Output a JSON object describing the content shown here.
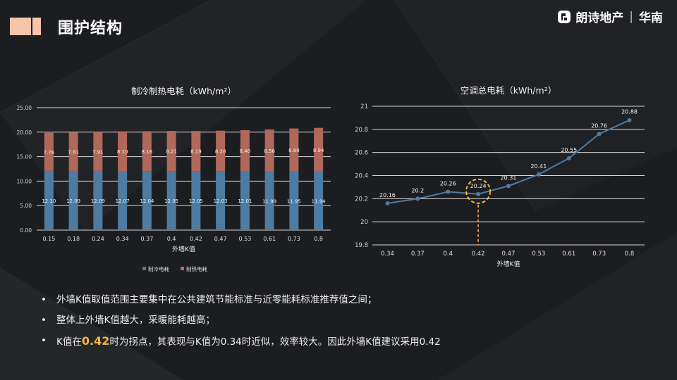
{
  "slide": {
    "title": "围护结构",
    "brand": "朗诗地产",
    "region": "华南",
    "accent_colors": [
      "#f5c4a9",
      "#f5c4a9"
    ]
  },
  "chart_data": [
    {
      "type": "bar",
      "stacked": true,
      "title": "制冷制热电耗（kWh/m²）",
      "xlabel": "外墙K值",
      "ylabel": "",
      "categories": [
        "0.15",
        "0.18",
        "0.24",
        "0.34",
        "0.37",
        "0.4",
        "0.42",
        "0.47",
        "0.53",
        "0.61",
        "0.73",
        "0.8"
      ],
      "series": [
        {
          "name": "制冷电耗",
          "color": "#4e7ba2",
          "values": [
            12.1,
            12.09,
            12.09,
            12.07,
            12.04,
            12.05,
            12.05,
            12.03,
            12.01,
            11.99,
            11.95,
            11.94
          ],
          "labels": [
            "12.10",
            "12.09",
            "12.09",
            "12.07",
            "12.04",
            "12.05",
            "12.05",
            "12.03",
            "12.01",
            "11.99",
            "11.95",
            "11.94"
          ]
        },
        {
          "name": "制热电耗",
          "color": "#b0685a",
          "values": [
            7.76,
            7.81,
            7.91,
            8.1,
            8.16,
            8.21,
            8.19,
            8.28,
            8.4,
            8.56,
            8.8,
            8.94
          ],
          "labels": [
            "7.76",
            "7.81",
            "7.91",
            "8.10",
            "8.16",
            "8.21",
            "8.19",
            "8.28",
            "8.40",
            "8.56",
            "8.80",
            "8.94"
          ]
        }
      ],
      "ylim": [
        0,
        25
      ],
      "yticks": [
        "0.00",
        "5.00",
        "10.00",
        "15.00",
        "20.00",
        "25.00"
      ],
      "grid": true,
      "legend": "bottom"
    },
    {
      "type": "line",
      "title": "空调总电耗（kWh/m²）",
      "xlabel": "外墙K值",
      "ylabel": "",
      "categories": [
        "0.34",
        "0.37",
        "0.4",
        "0.42",
        "0.47",
        "0.53",
        "0.61",
        "0.73",
        "0.8"
      ],
      "series": [
        {
          "color": "#4e7ba2",
          "values": [
            20.16,
            20.2,
            20.26,
            20.24,
            20.31,
            20.41,
            20.55,
            20.76,
            20.88
          ],
          "labels": [
            "20.16",
            "20.2",
            "20.26",
            "20.24",
            "20.31",
            "20.41",
            "20.55",
            "20.76",
            "20.88"
          ]
        }
      ],
      "ylim": [
        19.8,
        21
      ],
      "yticks": [
        "19.8",
        "20",
        "20.2",
        "20.4",
        "20.6",
        "20.8",
        "21"
      ],
      "grid": true,
      "highlight": {
        "category": "0.42",
        "value": 20.24,
        "color": "#f2b64a"
      }
    }
  ],
  "bullets": [
    {
      "marker": "•",
      "text": "外墙K值取值范围主要集中在公共建筑节能标准与近零能耗标准推荐值之间；"
    },
    {
      "marker": "•",
      "text": "整体上外墙K值越大，采暖能耗越高；"
    },
    {
      "marker": "•",
      "pre": "K值在",
      "highlight": "0.42",
      "post": "时为拐点，其表现与K值为0.34时近似，效率较大。因此外墙K值建议采用0.42"
    }
  ]
}
